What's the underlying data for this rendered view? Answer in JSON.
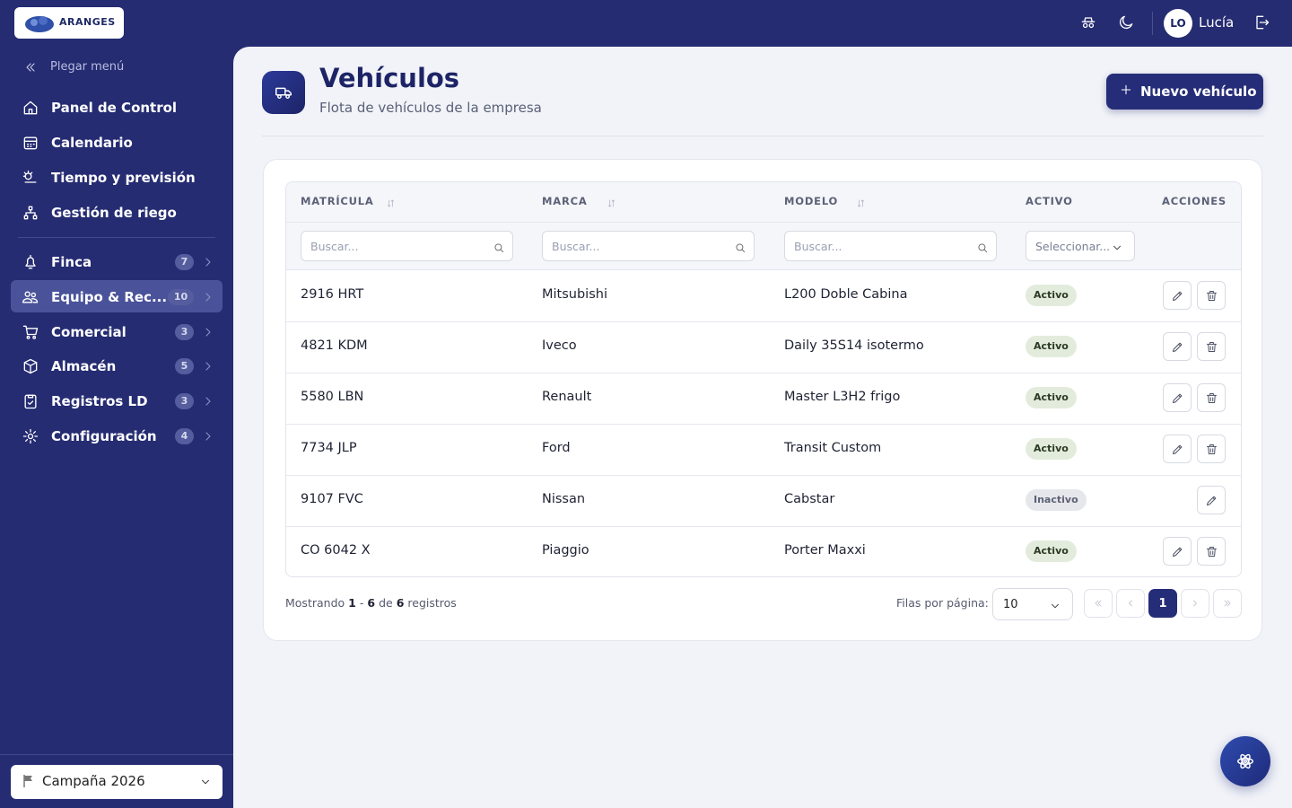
{
  "header": {
    "logo": "ARANGES",
    "user_initials": "LO",
    "user_name": "Lucía"
  },
  "sidebar": {
    "collapse": "Plegar menú",
    "nav": [
      "Panel de Control",
      "Calendario",
      "Tiempo y previsión",
      "Gestión de riego"
    ],
    "groups": [
      {
        "label": "Finca",
        "count": 7,
        "selected": false
      },
      {
        "label": "Equipo & Rec...",
        "count": 10,
        "selected": true
      },
      {
        "label": "Comercial",
        "count": 3,
        "selected": false
      },
      {
        "label": "Almacén",
        "count": 5,
        "selected": false
      },
      {
        "label": "Registros LD",
        "count": 3,
        "selected": false
      },
      {
        "label": "Configuración",
        "count": 4,
        "selected": false
      }
    ],
    "campaign": "Campaña 2026"
  },
  "page": {
    "title": "Vehículos",
    "subtitle": "Flota de vehículos de la empresa",
    "new_button": "Nuevo vehículo"
  },
  "table": {
    "columns": [
      "MATRÍCULA",
      "MARCA",
      "MODELO",
      "ACTIVO",
      "ACCIONES"
    ],
    "search_placeholder": "Buscar...",
    "select_placeholder": "Seleccionar...",
    "rows": [
      {
        "plate": "2916 HRT",
        "brand": "Mitsubishi",
        "model": "L200 Doble Cabina",
        "status": "Activo",
        "active": true
      },
      {
        "plate": "4821 KDM",
        "brand": "Iveco",
        "model": "Daily 35S14 isotermo",
        "status": "Activo",
        "active": true
      },
      {
        "plate": "5580 LBN",
        "brand": "Renault",
        "model": "Master L3H2 frigo",
        "status": "Activo",
        "active": true
      },
      {
        "plate": "7734 JLP",
        "brand": "Ford",
        "model": "Transit Custom",
        "status": "Activo",
        "active": true
      },
      {
        "plate": "9107 FVC",
        "brand": "Nissan",
        "model": "Cabstar",
        "status": "Inactivo",
        "active": false
      },
      {
        "plate": "CO 6042 X",
        "brand": "Piaggio",
        "model": "Porter Maxxi",
        "status": "Activo",
        "active": true
      }
    ]
  },
  "footer": {
    "showing": "Mostrando",
    "from": 1,
    "separator": "-",
    "to": 6,
    "of": "de",
    "total": 6,
    "records": "registros",
    "rows_per_page": "Filas por página:",
    "page_size": 10,
    "current_page": 1
  }
}
